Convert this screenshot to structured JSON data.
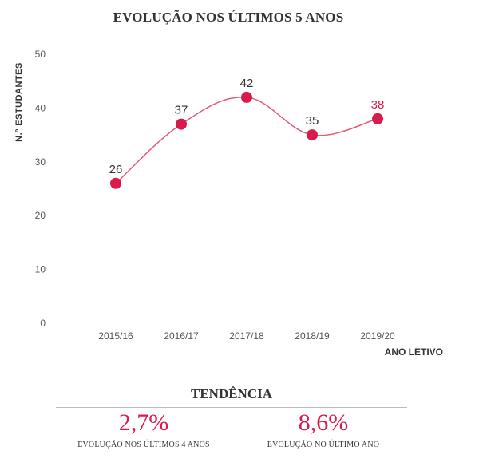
{
  "colors": {
    "accent": "#d81b4a",
    "line": "#e35a78",
    "text": "#333333",
    "grid_label": "#555555"
  },
  "chart_data": {
    "type": "line",
    "title": "EVOLUÇÃO NOS ÚLTIMOS 5 ANOS",
    "xlabel": "ANO LETIVO",
    "ylabel": "N.º ESTUDANTES",
    "categories": [
      "2015/16",
      "2016/17",
      "2017/18",
      "2018/19",
      "2019/20"
    ],
    "values": [
      26,
      37,
      42,
      35,
      38
    ],
    "data_labels": [
      "26",
      "37",
      "42",
      "35",
      "38"
    ],
    "ylim": [
      0,
      50
    ],
    "yticks": [
      "0",
      "10",
      "20",
      "30",
      "40",
      "50"
    ],
    "grid": false,
    "curve": "smooth",
    "highlight_last_label": true
  },
  "trend": {
    "title": "TENDÊNCIA",
    "stats": [
      {
        "value": "2,7%",
        "label": "EVOLUÇÃO NOS ÚLTIMOS 4 ANOS"
      },
      {
        "value": "8,6%",
        "label": "EVOLUÇÃO NO ÚLTIMO ANO"
      }
    ]
  }
}
